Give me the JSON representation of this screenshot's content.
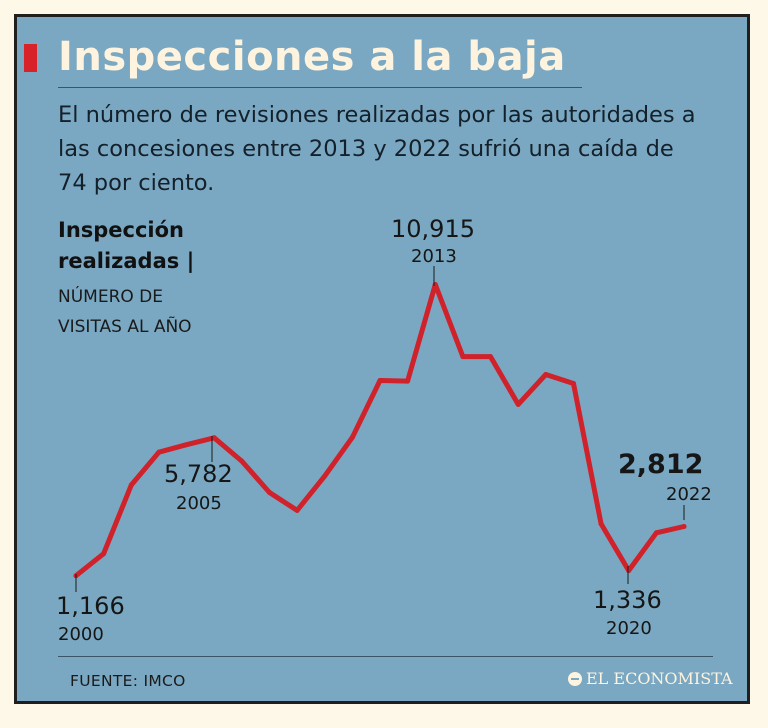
{
  "header": {
    "title": "Inspecciones a la baja",
    "subtitle": "El número de revisiones realizadas por las autoridades a las concesiones entre 2013 y 2022 sufrió una caída de 74 por ciento."
  },
  "chart_data": {
    "type": "line",
    "title": "Inspección realizadas |",
    "ylabel_line1": "Inspección",
    "ylabel_line2": "realizadas |",
    "unit_line1": "NÚMERO DE",
    "unit_line2": "VISITAS AL AÑO",
    "x": [
      2000.0,
      2001.0,
      2002.0,
      2003.0,
      2004.0,
      2005.0,
      2006.0,
      2007.0,
      2008.0,
      2009.0,
      2010.0,
      2011.0,
      2012.0,
      2013.0,
      2014.0,
      2015.0,
      2016.0,
      2017.0,
      2018.0,
      2019.0,
      2020.0,
      2021.0,
      2022.0
    ],
    "values": [
      1166,
      1900,
      4200,
      5300,
      5550,
      5782,
      5000,
      3950,
      3350,
      4500,
      5800,
      7700,
      7680,
      10915,
      8500,
      8500,
      6900,
      7900,
      7600,
      2900,
      1336,
      2600,
      2812
    ],
    "ylim": [
      0,
      11000
    ],
    "color": "#d0222b",
    "annotations": [
      {
        "value": "1,166",
        "year": "2000",
        "highlight": false
      },
      {
        "value": "5,782",
        "year": "2005",
        "highlight": false
      },
      {
        "value": "10,915",
        "year": "2013",
        "highlight": false
      },
      {
        "value": "1,336",
        "year": "2020",
        "highlight": false
      },
      {
        "value": "2,812",
        "year": "2022",
        "highlight": true
      }
    ]
  },
  "footer": {
    "source": "FUENTE: IMCO",
    "brand": "EL ECONOMISTA"
  }
}
